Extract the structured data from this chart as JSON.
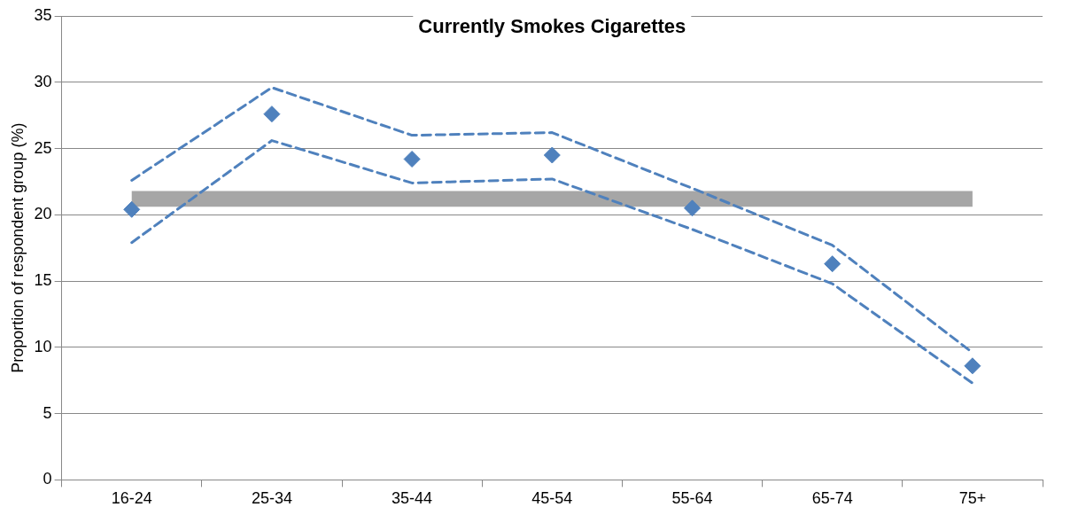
{
  "chart_data": {
    "type": "line",
    "title": "Currently Smokes Cigarettes",
    "ylabel": "Proportion of respondent group (%)",
    "categories": [
      "16-24",
      "25-34",
      "35-44",
      "45-54",
      "55-64",
      "65-74",
      "75+"
    ],
    "ylim": [
      0,
      35
    ],
    "yticks": [
      0,
      5,
      10,
      15,
      20,
      25,
      30,
      35
    ],
    "grid": "y",
    "legend": false,
    "bands": [
      {
        "axis": "y",
        "from": 20.6,
        "to": 21.8,
        "color": "#a6a6a6"
      }
    ],
    "series": [
      {
        "type": "scatter",
        "marker": "diamond",
        "color": "#4f81bd",
        "values": [
          20.4,
          27.6,
          24.2,
          24.5,
          20.5,
          16.3,
          8.6
        ]
      },
      {
        "marker": "none",
        "line_style": "dashed",
        "color": "#4f81bd",
        "values": [
          22.6,
          29.6,
          26.0,
          26.2,
          22.0,
          17.7,
          9.6
        ]
      },
      {
        "marker": "none",
        "line_style": "dashed",
        "color": "#4f81bd",
        "values": [
          17.9,
          25.6,
          22.4,
          22.7,
          18.9,
          14.8,
          7.3
        ]
      }
    ]
  }
}
